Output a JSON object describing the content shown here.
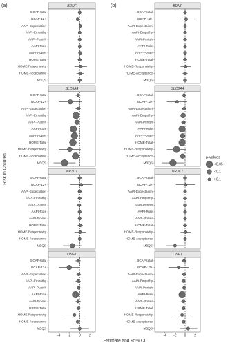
{
  "chart_data": {
    "type": "forest",
    "y_label": "Risk in Children",
    "x_label": "Estimate and 95% CI",
    "xlim": [
      -6,
      3
    ],
    "xticks": [
      -4,
      -2,
      0,
      2
    ],
    "reference_line": 0,
    "categories": [
      "BCAP-total",
      "BCAP-12+",
      "AAPI-Expectation",
      "AAPI-Empathy",
      "AAPI-Punish",
      "AAPI-Role",
      "AAPI-Power",
      "HOME-Total",
      "HOME-Responsivity",
      "HOME-Acceptance",
      "MBQS"
    ],
    "legend": {
      "title": "p-values",
      "entries": [
        "<0.05",
        "<0.1",
        ">0.1"
      ]
    },
    "color": "#6b6b6b",
    "panels": [
      {
        "label": "(a)",
        "facets": [
          {
            "title": "BDNF",
            "values": [
              0,
              -0.4,
              0.1,
              0,
              0,
              0,
              0.1,
              0,
              0.2,
              0.1,
              0
            ],
            "ci_low": [
              -0.4,
              -2.4,
              -0.3,
              -0.3,
              -0.4,
              -0.3,
              -0.3,
              -0.4,
              -1,
              -0.6,
              -0.4
            ],
            "ci_high": [
              0.4,
              1.6,
              0.5,
              0.3,
              0.4,
              0.3,
              0.5,
              0.4,
              1.4,
              0.8,
              0.4
            ],
            "p_values": [
              ">0.1",
              ">0.1",
              ">0.1",
              ">0.1",
              ">0.1",
              ">0.1",
              ">0.1",
              ">0.1",
              ">0.1",
              ">0.1",
              ">0.1"
            ]
          },
          {
            "title": "SLC6A4",
            "values": [
              -0.3,
              -1.8,
              -0.3,
              -0.7,
              -0.5,
              -1.2,
              -1,
              -1.3,
              -1.9,
              -0.8,
              -2.9
            ],
            "ci_low": [
              -0.8,
              -4,
              -0.8,
              -1.3,
              -1,
              -1.9,
              -1.6,
              -2,
              -4,
              -1.5,
              -5
            ],
            "ci_high": [
              0.2,
              0.4,
              0.2,
              -0.1,
              0,
              -0.5,
              -0.4,
              -0.6,
              0.2,
              -0.1,
              -0.8
            ],
            "p_values": [
              ">0.1",
              "<0.1",
              ">0.1",
              "<0.05",
              "<0.1",
              "<0.05",
              "<0.05",
              "<0.05",
              "<0.1",
              "<0.05",
              "<0.05"
            ]
          },
          {
            "title": "NR3C1",
            "values": [
              0,
              0.3,
              0,
              0,
              -0.1,
              0,
              0,
              0.1,
              0.1,
              0,
              -1.4
            ],
            "ci_low": [
              -0.5,
              -1.8,
              -0.4,
              -0.4,
              -0.5,
              -0.4,
              -0.4,
              -0.4,
              -1,
              -0.6,
              -3.2
            ],
            "ci_high": [
              0.5,
              2.4,
              0.4,
              0.4,
              0.3,
              0.4,
              0.4,
              0.6,
              1.2,
              0.6,
              0.4
            ],
            "p_values": [
              ">0.1",
              ">0.1",
              ">0.1",
              ">0.1",
              ">0.1",
              ">0.1",
              ">0.1",
              ">0.1",
              ">0.1",
              ">0.1",
              "<0.1"
            ]
          },
          {
            "title": "LINE1",
            "values": [
              -0.3,
              -2,
              -0.2,
              -0.3,
              -0.2,
              -0.8,
              -0.3,
              -0.2,
              -1,
              -0.4,
              0
            ],
            "ci_low": [
              -0.8,
              -4,
              -0.6,
              -0.8,
              -0.6,
              -1.4,
              -0.8,
              -0.7,
              -2.8,
              -1.2,
              -1.8
            ],
            "ci_high": [
              0.2,
              0,
              0.2,
              0.2,
              0.2,
              -0.2,
              0.2,
              0.3,
              0.8,
              0.4,
              1.8
            ],
            "p_values": [
              ">0.1",
              "<0.1",
              ">0.1",
              ">0.1",
              ">0.1",
              "<0.05",
              ">0.1",
              ">0.1",
              ">0.1",
              ">0.1",
              ">0.1"
            ]
          }
        ]
      },
      {
        "label": "(b)",
        "facets": [
          {
            "title": "BDNF",
            "values": [
              0,
              0.2,
              0,
              0,
              0,
              0,
              0,
              0,
              0.1,
              0,
              0
            ],
            "ci_low": [
              -0.4,
              -1.5,
              -0.3,
              -0.3,
              -0.4,
              -0.3,
              -0.3,
              -0.4,
              -0.9,
              -0.5,
              -0.4
            ],
            "ci_high": [
              0.4,
              1.9,
              0.3,
              0.3,
              0.4,
              0.3,
              0.3,
              0.4,
              1.1,
              0.5,
              0.4
            ],
            "p_values": [
              ">0.1",
              ">0.1",
              ">0.1",
              ">0.1",
              ">0.1",
              ">0.1",
              ">0.1",
              ">0.1",
              ">0.1",
              ">0.1",
              ">0.1"
            ]
          },
          {
            "title": "SLC6A4",
            "values": [
              -0.2,
              -1.6,
              -0.2,
              -0.4,
              -0.3,
              -0.6,
              -0.5,
              -0.6,
              -1.7,
              -0.5,
              -2.4
            ],
            "ci_low": [
              -0.6,
              -3.6,
              -0.6,
              -0.9,
              -0.8,
              -1.2,
              -1,
              -1.2,
              -3.6,
              -1.1,
              -4.6
            ],
            "ci_high": [
              0.2,
              0.4,
              0.2,
              0.1,
              0.2,
              0,
              0,
              0,
              0.2,
              0.1,
              -0.2
            ],
            "p_values": [
              ">0.1",
              ">0.1",
              ">0.1",
              "<0.1",
              ">0.1",
              "<0.05",
              "<0.1",
              "<0.05",
              "<0.05",
              "<0.1",
              "<0.05"
            ]
          },
          {
            "title": "NR3C1",
            "values": [
              0,
              0.1,
              0,
              0,
              0,
              0,
              0,
              0,
              0.1,
              0,
              -2
            ],
            "ci_low": [
              -0.4,
              -1.8,
              -0.3,
              -0.4,
              -0.4,
              -0.3,
              -0.3,
              -0.4,
              -0.9,
              -0.5,
              -3.8
            ],
            "ci_high": [
              0.4,
              2,
              0.3,
              0.4,
              0.4,
              0.3,
              0.3,
              0.4,
              1.1,
              0.5,
              -0.2
            ],
            "p_values": [
              ">0.1",
              ">0.1",
              ">0.1",
              ">0.1",
              ">0.1",
              ">0.1",
              ">0.1",
              ">0.1",
              ">0.1",
              ">0.1",
              ">0.1"
            ]
          },
          {
            "title": "LINE1",
            "values": [
              -0.2,
              -1.3,
              -0.2,
              -0.3,
              -0.2,
              -0.6,
              -0.3,
              -0.3,
              -0.6,
              -0.3,
              0.6
            ],
            "ci_low": [
              -0.6,
              -3.3,
              -0.6,
              -0.7,
              -0.6,
              -1.1,
              -0.8,
              -0.8,
              -2.3,
              -1,
              -1
            ],
            "ci_high": [
              0.2,
              0.7,
              0.2,
              0.1,
              0.2,
              -0.1,
              0.2,
              0.2,
              1.1,
              0.4,
              2.4
            ],
            "p_values": [
              ">0.1",
              ">0.1",
              ">0.1",
              ">0.1",
              ">0.1",
              "<0.05",
              ">0.1",
              ">0.1",
              ">0.1",
              ">0.1",
              ">0.1"
            ]
          }
        ]
      }
    ]
  }
}
